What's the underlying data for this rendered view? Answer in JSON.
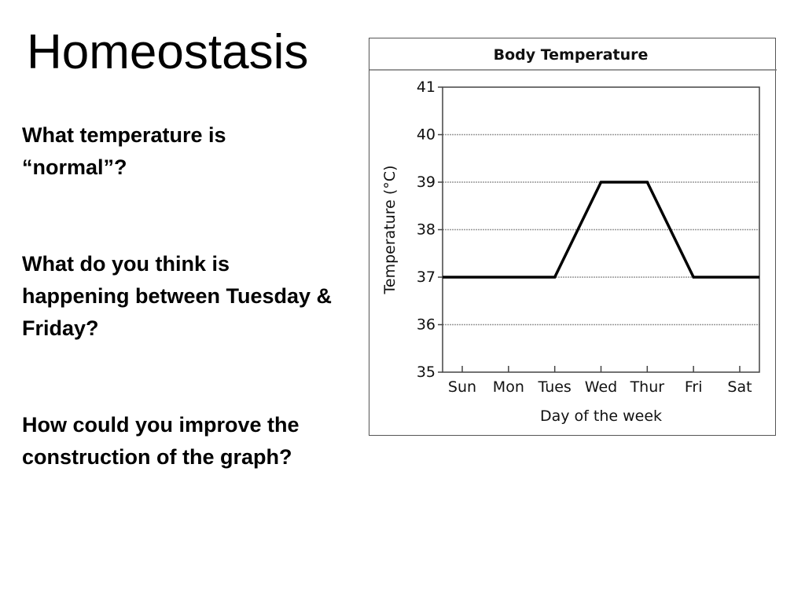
{
  "slide": {
    "title": "Homeostasis",
    "questions": [
      "What temperature is “normal”?",
      "What do you think is happening between Tuesday & Friday?",
      "How could you improve the construction of the graph?"
    ]
  },
  "chart_data": {
    "type": "line",
    "title": "Body Temperature",
    "xlabel": "Day of the week",
    "ylabel": "Temperature (°C)",
    "categories": [
      "Sun",
      "Mon",
      "Tues",
      "Wed",
      "Thur",
      "Fri",
      "Sat"
    ],
    "ylim": [
      35,
      41
    ],
    "yticks": [
      35,
      36,
      37,
      38,
      39,
      40,
      41
    ],
    "grid": true,
    "legend": "none",
    "series": [
      {
        "x": [
          "Sun",
          "Mon",
          "Tues",
          "Wed",
          "Thur",
          "Fri",
          "Sat"
        ],
        "values": [
          37,
          37,
          37,
          39,
          39,
          37,
          37
        ]
      }
    ],
    "line_color": "#000000",
    "grid_color": "#999999"
  }
}
